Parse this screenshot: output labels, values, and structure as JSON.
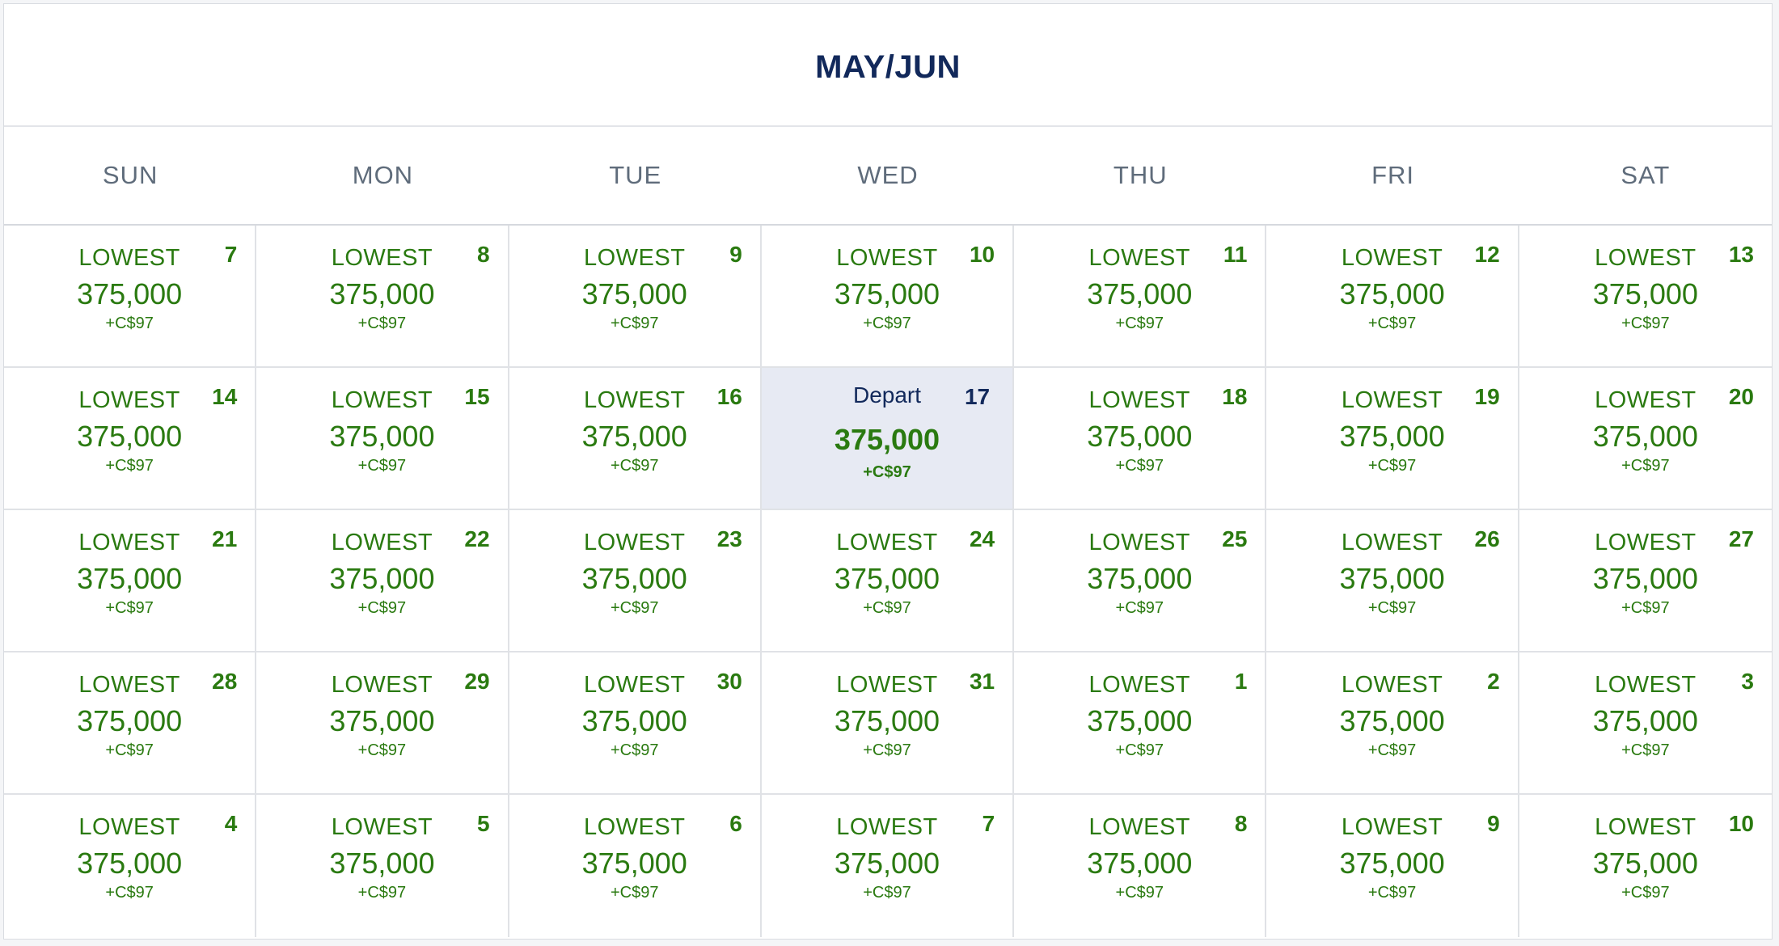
{
  "calendar": {
    "title": "MAY/JUN",
    "weekdays": [
      "SUN",
      "MON",
      "TUE",
      "WED",
      "THU",
      "FRI",
      "SAT"
    ],
    "days": [
      {
        "day": "7",
        "label": "LOWEST",
        "points": "375,000",
        "fee": "+C$97"
      },
      {
        "day": "8",
        "label": "LOWEST",
        "points": "375,000",
        "fee": "+C$97"
      },
      {
        "day": "9",
        "label": "LOWEST",
        "points": "375,000",
        "fee": "+C$97"
      },
      {
        "day": "10",
        "label": "LOWEST",
        "points": "375,000",
        "fee": "+C$97"
      },
      {
        "day": "11",
        "label": "LOWEST",
        "points": "375,000",
        "fee": "+C$97"
      },
      {
        "day": "12",
        "label": "LOWEST",
        "points": "375,000",
        "fee": "+C$97"
      },
      {
        "day": "13",
        "label": "LOWEST",
        "points": "375,000",
        "fee": "+C$97"
      },
      {
        "day": "14",
        "label": "LOWEST",
        "points": "375,000",
        "fee": "+C$97"
      },
      {
        "day": "15",
        "label": "LOWEST",
        "points": "375,000",
        "fee": "+C$97"
      },
      {
        "day": "16",
        "label": "LOWEST",
        "points": "375,000",
        "fee": "+C$97"
      },
      {
        "day": "17",
        "label": "Depart",
        "points": "375,000",
        "fee": "+C$97",
        "selected": true
      },
      {
        "day": "18",
        "label": "LOWEST",
        "points": "375,000",
        "fee": "+C$97"
      },
      {
        "day": "19",
        "label": "LOWEST",
        "points": "375,000",
        "fee": "+C$97"
      },
      {
        "day": "20",
        "label": "LOWEST",
        "points": "375,000",
        "fee": "+C$97"
      },
      {
        "day": "21",
        "label": "LOWEST",
        "points": "375,000",
        "fee": "+C$97"
      },
      {
        "day": "22",
        "label": "LOWEST",
        "points": "375,000",
        "fee": "+C$97"
      },
      {
        "day": "23",
        "label": "LOWEST",
        "points": "375,000",
        "fee": "+C$97"
      },
      {
        "day": "24",
        "label": "LOWEST",
        "points": "375,000",
        "fee": "+C$97"
      },
      {
        "day": "25",
        "label": "LOWEST",
        "points": "375,000",
        "fee": "+C$97"
      },
      {
        "day": "26",
        "label": "LOWEST",
        "points": "375,000",
        "fee": "+C$97"
      },
      {
        "day": "27",
        "label": "LOWEST",
        "points": "375,000",
        "fee": "+C$97"
      },
      {
        "day": "28",
        "label": "LOWEST",
        "points": "375,000",
        "fee": "+C$97"
      },
      {
        "day": "29",
        "label": "LOWEST",
        "points": "375,000",
        "fee": "+C$97"
      },
      {
        "day": "30",
        "label": "LOWEST",
        "points": "375,000",
        "fee": "+C$97"
      },
      {
        "day": "31",
        "label": "LOWEST",
        "points": "375,000",
        "fee": "+C$97"
      },
      {
        "day": "1",
        "label": "LOWEST",
        "points": "375,000",
        "fee": "+C$97"
      },
      {
        "day": "2",
        "label": "LOWEST",
        "points": "375,000",
        "fee": "+C$97"
      },
      {
        "day": "3",
        "label": "LOWEST",
        "points": "375,000",
        "fee": "+C$97"
      },
      {
        "day": "4",
        "label": "LOWEST",
        "points": "375,000",
        "fee": "+C$97"
      },
      {
        "day": "5",
        "label": "LOWEST",
        "points": "375,000",
        "fee": "+C$97"
      },
      {
        "day": "6",
        "label": "LOWEST",
        "points": "375,000",
        "fee": "+C$97"
      },
      {
        "day": "7",
        "label": "LOWEST",
        "points": "375,000",
        "fee": "+C$97"
      },
      {
        "day": "8",
        "label": "LOWEST",
        "points": "375,000",
        "fee": "+C$97"
      },
      {
        "day": "9",
        "label": "LOWEST",
        "points": "375,000",
        "fee": "+C$97"
      },
      {
        "day": "10",
        "label": "LOWEST",
        "points": "375,000",
        "fee": "+C$97"
      }
    ]
  },
  "colors": {
    "title": "#12295b",
    "price_green": "#2a7a10",
    "weekday_gray": "#5f6c7b",
    "selected_bg": "#e7eaf3",
    "grid_line": "#e0e2e6"
  }
}
